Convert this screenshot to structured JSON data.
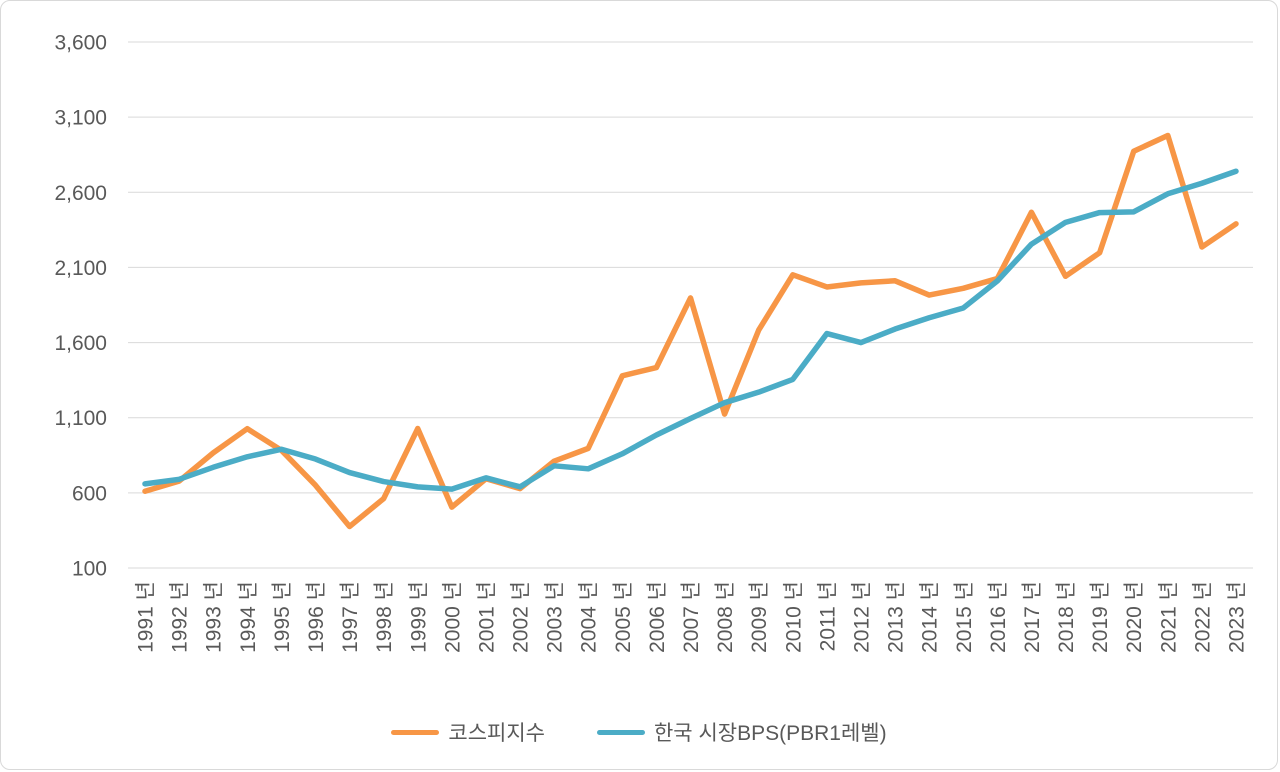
{
  "chart_data": {
    "type": "line",
    "title": "",
    "xlabel": "",
    "ylabel": "",
    "categories": [
      "1991 년",
      "1992 년",
      "1993 년",
      "1994 년",
      "1995 년",
      "1996 년",
      "1997 년",
      "1998 년",
      "1999 년",
      "2000 년",
      "2001 년",
      "2002 년",
      "2003 년",
      "2004 년",
      "2005 년",
      "2006 년",
      "2007 년",
      "2008 년",
      "2009 년",
      "2010 년",
      "2011 년",
      "2012 년",
      "2013 년",
      "2014 년",
      "2015 년",
      "2016 년",
      "2017 년",
      "2018 년",
      "2019 년",
      "2020 년",
      "2021 년",
      "2022 년",
      "2023 년"
    ],
    "series": [
      {
        "name": "코스피지수",
        "color": "#F79646",
        "values": [
          611,
          678,
          866,
          1027,
          883,
          651,
          376,
          562,
          1028,
          505,
          694,
          628,
          811,
          896,
          1379,
          1434,
          1897,
          1124,
          1683,
          2051,
          1970,
          1997,
          2011,
          1916,
          1961,
          2026,
          2467,
          2041,
          2198,
          2873,
          2978,
          2236,
          2390
        ]
      },
      {
        "name": "한국 시장BPS(PBR1레벨)",
        "color": "#4BACC6",
        "values": [
          660,
          690,
          770,
          840,
          890,
          825,
          735,
          675,
          640,
          625,
          700,
          640,
          780,
          760,
          860,
          985,
          1095,
          1200,
          1270,
          1355,
          1660,
          1600,
          1690,
          1765,
          1830,
          2010,
          2255,
          2400,
          2465,
          2470,
          2590,
          2660,
          2740
        ]
      }
    ],
    "y_axis": {
      "min": 100,
      "max": 3600,
      "step": 500,
      "tick_labels": [
        "100",
        "600",
        "1,100",
        "1,600",
        "2,100",
        "2,600",
        "3,100",
        "3,600"
      ]
    },
    "x_axis": {
      "label_rotation_deg": -90
    },
    "grid": true,
    "legend_position": "bottom"
  },
  "style": {
    "grid_color": "#d9d9d9",
    "axis_text_color": "#595959",
    "background_color": "#ffffff",
    "line_width": 5.5,
    "tick_font_size": 21
  }
}
